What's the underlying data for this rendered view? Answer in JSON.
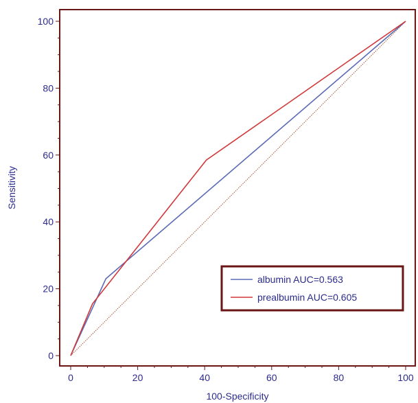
{
  "chart_data": {
    "type": "line",
    "title": "",
    "xlabel": "100-Specificity",
    "ylabel": "Sensitivity",
    "xlim": [
      0,
      100
    ],
    "ylim": [
      0,
      100
    ],
    "xticks": [
      0,
      20,
      40,
      60,
      80,
      100
    ],
    "yticks": [
      0,
      20,
      40,
      60,
      80,
      100
    ],
    "grid": false,
    "legend_position": "bottom-right",
    "reference_line": {
      "x": [
        0,
        100
      ],
      "y": [
        0,
        100
      ],
      "color": "#a0522d",
      "style": "dotted"
    },
    "series": [
      {
        "name": "albumin AUC=0.563",
        "color": "#5b6bb5",
        "x": [
          0,
          10.5,
          100
        ],
        "y": [
          0,
          23,
          100
        ]
      },
      {
        "name": "prealbumin AUC=0.605",
        "color": "#d0393b",
        "x": [
          0,
          6.5,
          40.5,
          100
        ],
        "y": [
          0,
          15.5,
          58.5,
          100
        ]
      }
    ],
    "colors": {
      "frame": "#6b1515",
      "text": "#2b2b8c"
    }
  }
}
